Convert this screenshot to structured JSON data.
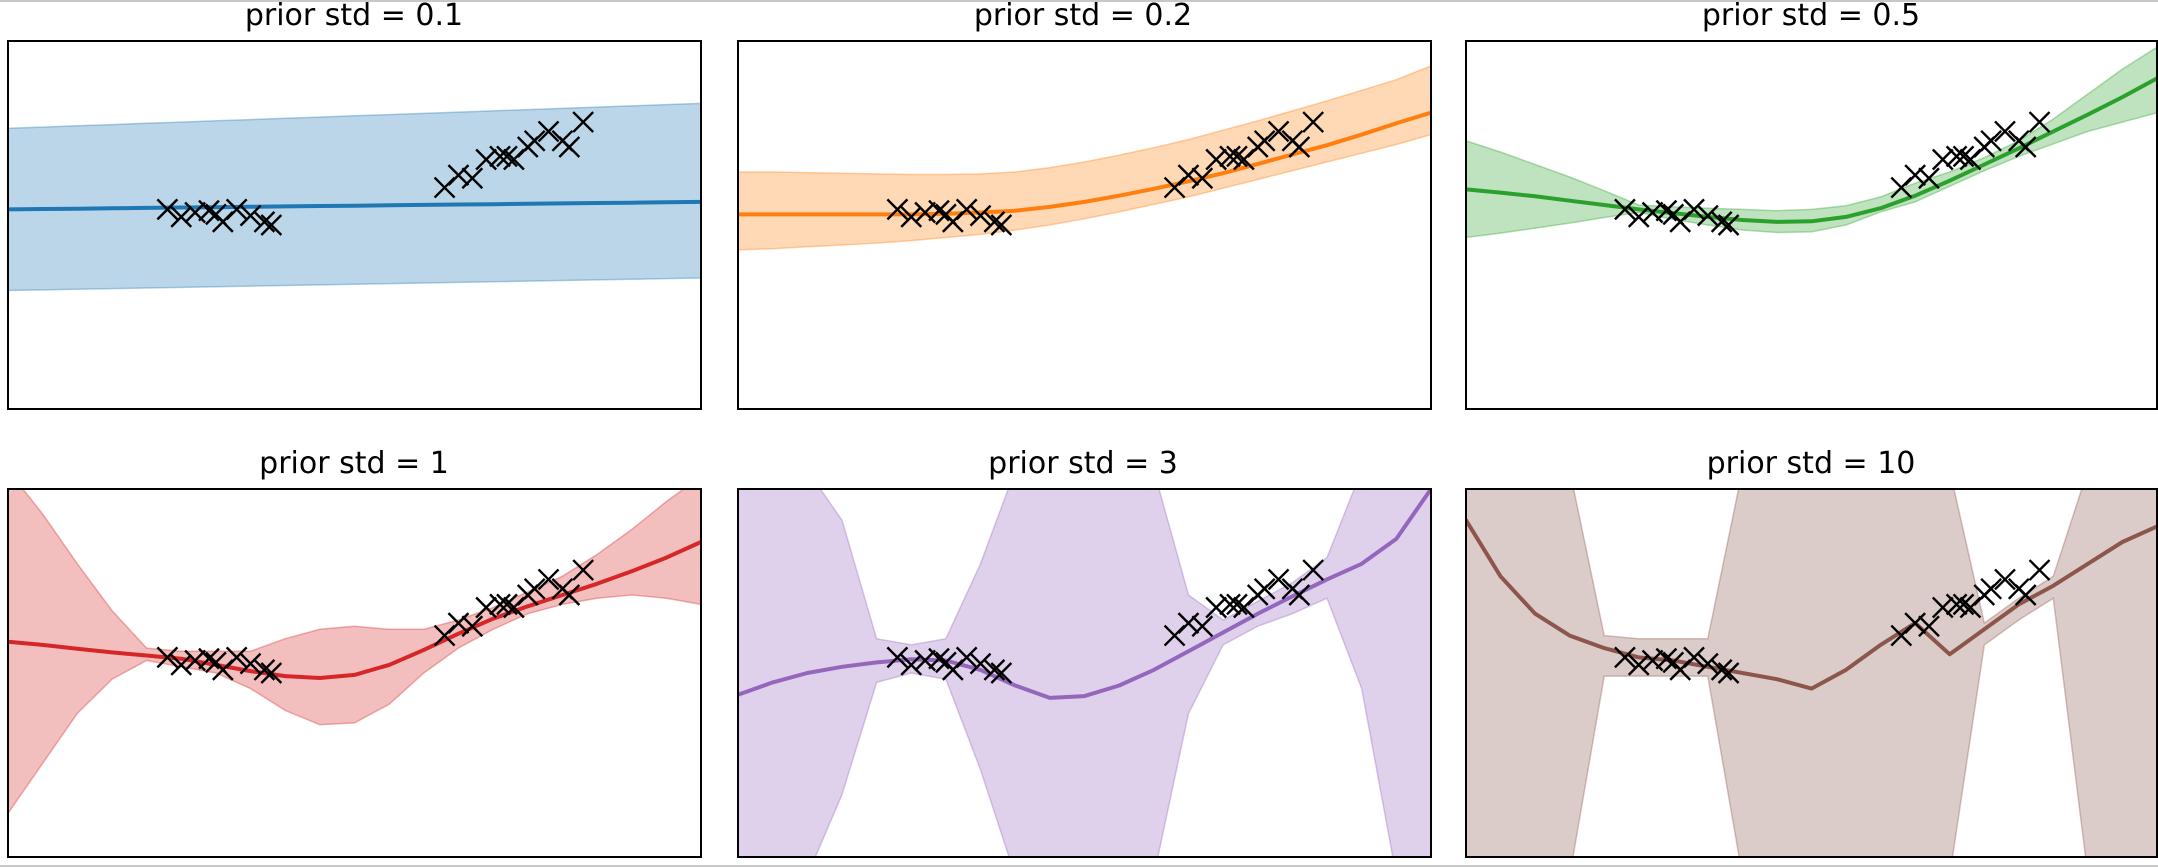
{
  "chart_data": [
    {
      "type": "line",
      "title": "prior std = 0.1",
      "color": "#1f77b4",
      "band_color": "#1f77b4",
      "ylim": [
        -3.2,
        2.7
      ],
      "xlim": [
        0,
        1
      ],
      "x": [
        0,
        0.05,
        0.1,
        0.15,
        0.2,
        0.25,
        0.3,
        0.35,
        0.4,
        0.45,
        0.5,
        0.55,
        0.6,
        0.65,
        0.7,
        0.75,
        0.8,
        0.85,
        0.9,
        0.95,
        1
      ],
      "mean": [
        0,
        0.006,
        0.012,
        0.018,
        0.024,
        0.03,
        0.036,
        0.042,
        0.048,
        0.054,
        0.06,
        0.066,
        0.072,
        0.078,
        0.084,
        0.09,
        0.096,
        0.102,
        0.108,
        0.114,
        0.12
      ],
      "lower": [
        -1.3,
        -1.29,
        -1.28,
        -1.27,
        -1.26,
        -1.25,
        -1.24,
        -1.23,
        -1.22,
        -1.21,
        -1.2,
        -1.19,
        -1.18,
        -1.17,
        -1.16,
        -1.15,
        -1.14,
        -1.13,
        -1.12,
        -1.11,
        -1.1
      ],
      "upper": [
        1.3,
        1.32,
        1.34,
        1.36,
        1.38,
        1.4,
        1.42,
        1.44,
        1.46,
        1.48,
        1.5,
        1.52,
        1.54,
        1.56,
        1.58,
        1.6,
        1.62,
        1.64,
        1.66,
        1.68,
        1.7
      ],
      "points": [
        {
          "x": 0.23,
          "y": 0.0
        },
        {
          "x": 0.25,
          "y": -0.12
        },
        {
          "x": 0.27,
          "y": -0.05
        },
        {
          "x": 0.29,
          "y": -0.02
        },
        {
          "x": 0.3,
          "y": -0.08
        },
        {
          "x": 0.31,
          "y": -0.2
        },
        {
          "x": 0.33,
          "y": 0.0
        },
        {
          "x": 0.35,
          "y": -0.1
        },
        {
          "x": 0.37,
          "y": -0.2
        },
        {
          "x": 0.38,
          "y": -0.25
        },
        {
          "x": 0.63,
          "y": 0.35
        },
        {
          "x": 0.65,
          "y": 0.55
        },
        {
          "x": 0.67,
          "y": 0.5
        },
        {
          "x": 0.69,
          "y": 0.8
        },
        {
          "x": 0.71,
          "y": 0.85
        },
        {
          "x": 0.72,
          "y": 0.85
        },
        {
          "x": 0.73,
          "y": 0.8
        },
        {
          "x": 0.75,
          "y": 1.0
        },
        {
          "x": 0.76,
          "y": 1.1
        },
        {
          "x": 0.78,
          "y": 1.25
        },
        {
          "x": 0.8,
          "y": 1.1
        },
        {
          "x": 0.81,
          "y": 1.0
        },
        {
          "x": 0.83,
          "y": 1.4
        }
      ]
    },
    {
      "type": "line",
      "title": "prior std = 0.2",
      "color": "#ff7f0e",
      "band_color": "#ff7f0e",
      "ylim": [
        -3.2,
        2.7
      ],
      "xlim": [
        0,
        1
      ],
      "x": [
        0,
        0.05,
        0.1,
        0.15,
        0.2,
        0.25,
        0.3,
        0.35,
        0.4,
        0.45,
        0.5,
        0.55,
        0.6,
        0.65,
        0.7,
        0.75,
        0.8,
        0.85,
        0.9,
        0.95,
        1
      ],
      "mean": [
        -0.08,
        -0.08,
        -0.08,
        -0.08,
        -0.08,
        -0.08,
        -0.07,
        -0.05,
        -0.02,
        0.04,
        0.12,
        0.22,
        0.33,
        0.45,
        0.58,
        0.73,
        0.88,
        1.03,
        1.2,
        1.38,
        1.55
      ],
      "lower": [
        -0.65,
        -0.63,
        -0.6,
        -0.57,
        -0.54,
        -0.5,
        -0.45,
        -0.4,
        -0.33,
        -0.25,
        -0.15,
        -0.04,
        0.08,
        0.2,
        0.34,
        0.48,
        0.62,
        0.76,
        0.9,
        1.04,
        1.2
      ],
      "upper": [
        0.6,
        0.6,
        0.59,
        0.58,
        0.57,
        0.56,
        0.56,
        0.57,
        0.6,
        0.67,
        0.76,
        0.87,
        0.99,
        1.12,
        1.27,
        1.42,
        1.58,
        1.74,
        1.91,
        2.08,
        2.3
      ],
      "points": [
        {
          "x": 0.23,
          "y": 0.0
        },
        {
          "x": 0.25,
          "y": -0.12
        },
        {
          "x": 0.27,
          "y": -0.05
        },
        {
          "x": 0.29,
          "y": -0.02
        },
        {
          "x": 0.3,
          "y": -0.08
        },
        {
          "x": 0.31,
          "y": -0.2
        },
        {
          "x": 0.33,
          "y": 0.0
        },
        {
          "x": 0.35,
          "y": -0.1
        },
        {
          "x": 0.37,
          "y": -0.2
        },
        {
          "x": 0.38,
          "y": -0.25
        },
        {
          "x": 0.63,
          "y": 0.35
        },
        {
          "x": 0.65,
          "y": 0.55
        },
        {
          "x": 0.67,
          "y": 0.5
        },
        {
          "x": 0.69,
          "y": 0.8
        },
        {
          "x": 0.71,
          "y": 0.85
        },
        {
          "x": 0.72,
          "y": 0.85
        },
        {
          "x": 0.73,
          "y": 0.8
        },
        {
          "x": 0.75,
          "y": 1.0
        },
        {
          "x": 0.76,
          "y": 1.1
        },
        {
          "x": 0.78,
          "y": 1.25
        },
        {
          "x": 0.8,
          "y": 1.1
        },
        {
          "x": 0.81,
          "y": 1.0
        },
        {
          "x": 0.83,
          "y": 1.4
        }
      ]
    },
    {
      "type": "line",
      "title": "prior std = 0.5",
      "color": "#2ca02c",
      "band_color": "#2ca02c",
      "ylim": [
        -3.2,
        2.7
      ],
      "xlim": [
        0,
        1
      ],
      "x": [
        0,
        0.05,
        0.1,
        0.15,
        0.2,
        0.25,
        0.3,
        0.35,
        0.4,
        0.45,
        0.5,
        0.55,
        0.6,
        0.65,
        0.7,
        0.75,
        0.8,
        0.85,
        0.9,
        0.95,
        1
      ],
      "mean": [
        0.32,
        0.27,
        0.21,
        0.14,
        0.07,
        0.0,
        -0.06,
        -0.12,
        -0.17,
        -0.2,
        -0.19,
        -0.12,
        0.02,
        0.22,
        0.46,
        0.72,
        0.98,
        1.25,
        1.52,
        1.8,
        2.1
      ],
      "lower": [
        -0.45,
        -0.38,
        -0.3,
        -0.22,
        -0.13,
        -0.05,
        -0.16,
        -0.25,
        -0.33,
        -0.37,
        -0.36,
        -0.25,
        -0.04,
        0.12,
        0.37,
        0.62,
        0.85,
        1.05,
        1.25,
        1.4,
        1.55
      ],
      "upper": [
        1.1,
        0.92,
        0.72,
        0.52,
        0.3,
        0.07,
        0.04,
        0.02,
        0.0,
        -0.02,
        0.0,
        0.06,
        0.2,
        0.42,
        0.6,
        0.83,
        1.1,
        1.45,
        1.85,
        2.25,
        2.6
      ],
      "points": [
        {
          "x": 0.23,
          "y": 0.0
        },
        {
          "x": 0.25,
          "y": -0.12
        },
        {
          "x": 0.27,
          "y": -0.05
        },
        {
          "x": 0.29,
          "y": -0.02
        },
        {
          "x": 0.3,
          "y": -0.08
        },
        {
          "x": 0.31,
          "y": -0.2
        },
        {
          "x": 0.33,
          "y": 0.0
        },
        {
          "x": 0.35,
          "y": -0.1
        },
        {
          "x": 0.37,
          "y": -0.2
        },
        {
          "x": 0.38,
          "y": -0.25
        },
        {
          "x": 0.63,
          "y": 0.35
        },
        {
          "x": 0.65,
          "y": 0.55
        },
        {
          "x": 0.67,
          "y": 0.5
        },
        {
          "x": 0.69,
          "y": 0.8
        },
        {
          "x": 0.71,
          "y": 0.85
        },
        {
          "x": 0.72,
          "y": 0.85
        },
        {
          "x": 0.73,
          "y": 0.8
        },
        {
          "x": 0.75,
          "y": 1.0
        },
        {
          "x": 0.76,
          "y": 1.1
        },
        {
          "x": 0.78,
          "y": 1.25
        },
        {
          "x": 0.8,
          "y": 1.1
        },
        {
          "x": 0.81,
          "y": 1.0
        },
        {
          "x": 0.83,
          "y": 1.4
        }
      ]
    },
    {
      "type": "line",
      "title": "prior std = 1",
      "color": "#d62728",
      "band_color": "#d62728",
      "ylim": [
        -3.2,
        2.7
      ],
      "xlim": [
        0,
        1
      ],
      "x": [
        0,
        0.05,
        0.1,
        0.15,
        0.2,
        0.25,
        0.3,
        0.35,
        0.4,
        0.45,
        0.5,
        0.55,
        0.6,
        0.65,
        0.7,
        0.75,
        0.8,
        0.85,
        0.9,
        0.95,
        1
      ],
      "mean": [
        0.25,
        0.2,
        0.14,
        0.08,
        0.03,
        -0.02,
        -0.12,
        -0.22,
        -0.3,
        -0.33,
        -0.28,
        -0.12,
        0.12,
        0.38,
        0.62,
        0.82,
        1.0,
        1.18,
        1.38,
        1.6,
        1.85
      ],
      "lower": [
        -2.5,
        -1.7,
        -0.9,
        -0.35,
        -0.05,
        -0.15,
        -0.25,
        -0.5,
        -0.85,
        -1.08,
        -1.05,
        -0.75,
        -0.25,
        0.15,
        0.45,
        0.7,
        0.85,
        0.95,
        1.0,
        0.95,
        0.85
      ],
      "upper": [
        3.0,
        2.3,
        1.5,
        0.75,
        0.15,
        0.1,
        0.1,
        0.1,
        0.3,
        0.45,
        0.5,
        0.45,
        0.45,
        0.6,
        0.8,
        1.05,
        1.3,
        1.65,
        2.05,
        2.5,
        2.9
      ],
      "points": [
        {
          "x": 0.23,
          "y": 0.0
        },
        {
          "x": 0.25,
          "y": -0.12
        },
        {
          "x": 0.27,
          "y": -0.05
        },
        {
          "x": 0.29,
          "y": -0.02
        },
        {
          "x": 0.3,
          "y": -0.08
        },
        {
          "x": 0.31,
          "y": -0.2
        },
        {
          "x": 0.33,
          "y": 0.0
        },
        {
          "x": 0.35,
          "y": -0.1
        },
        {
          "x": 0.37,
          "y": -0.2
        },
        {
          "x": 0.38,
          "y": -0.25
        },
        {
          "x": 0.63,
          "y": 0.35
        },
        {
          "x": 0.65,
          "y": 0.55
        },
        {
          "x": 0.67,
          "y": 0.5
        },
        {
          "x": 0.69,
          "y": 0.8
        },
        {
          "x": 0.71,
          "y": 0.85
        },
        {
          "x": 0.72,
          "y": 0.85
        },
        {
          "x": 0.73,
          "y": 0.8
        },
        {
          "x": 0.75,
          "y": 1.0
        },
        {
          "x": 0.76,
          "y": 1.1
        },
        {
          "x": 0.78,
          "y": 1.25
        },
        {
          "x": 0.8,
          "y": 1.1
        },
        {
          "x": 0.81,
          "y": 1.0
        },
        {
          "x": 0.83,
          "y": 1.4
        }
      ]
    },
    {
      "type": "line",
      "title": "prior std = 3",
      "color": "#9467bd",
      "band_color": "#9467bd",
      "ylim": [
        -3.2,
        2.7
      ],
      "xlim": [
        0,
        1
      ],
      "x": [
        0,
        0.05,
        0.1,
        0.15,
        0.2,
        0.25,
        0.3,
        0.35,
        0.4,
        0.45,
        0.5,
        0.55,
        0.6,
        0.65,
        0.7,
        0.75,
        0.8,
        0.85,
        0.9,
        0.95,
        1
      ],
      "mean": [
        -0.6,
        -0.4,
        -0.25,
        -0.15,
        -0.08,
        -0.03,
        -0.05,
        -0.2,
        -0.45,
        -0.65,
        -0.62,
        -0.45,
        -0.2,
        0.1,
        0.4,
        0.7,
        0.98,
        1.25,
        1.5,
        1.9,
        2.7
      ],
      "lower": [
        -3.5,
        -3.5,
        -3.5,
        -2.2,
        -0.4,
        -0.25,
        -0.35,
        -1.8,
        -3.5,
        -3.5,
        -3.5,
        -3.5,
        -3.5,
        -0.9,
        0.2,
        0.5,
        0.7,
        0.95,
        -0.5,
        -3.5,
        -3.5
      ],
      "upper": [
        3.0,
        3.0,
        3.0,
        2.2,
        0.3,
        0.2,
        0.3,
        1.5,
        3.0,
        3.0,
        3.0,
        3.0,
        3.0,
        1.0,
        0.6,
        0.9,
        1.2,
        1.6,
        3.0,
        3.0,
        3.0
      ],
      "points": [
        {
          "x": 0.23,
          "y": 0.0
        },
        {
          "x": 0.25,
          "y": -0.12
        },
        {
          "x": 0.27,
          "y": -0.05
        },
        {
          "x": 0.29,
          "y": -0.02
        },
        {
          "x": 0.3,
          "y": -0.08
        },
        {
          "x": 0.31,
          "y": -0.2
        },
        {
          "x": 0.33,
          "y": 0.0
        },
        {
          "x": 0.35,
          "y": -0.1
        },
        {
          "x": 0.37,
          "y": -0.2
        },
        {
          "x": 0.38,
          "y": -0.25
        },
        {
          "x": 0.63,
          "y": 0.35
        },
        {
          "x": 0.65,
          "y": 0.55
        },
        {
          "x": 0.67,
          "y": 0.5
        },
        {
          "x": 0.69,
          "y": 0.8
        },
        {
          "x": 0.71,
          "y": 0.85
        },
        {
          "x": 0.72,
          "y": 0.85
        },
        {
          "x": 0.73,
          "y": 0.8
        },
        {
          "x": 0.75,
          "y": 1.0
        },
        {
          "x": 0.76,
          "y": 1.1
        },
        {
          "x": 0.78,
          "y": 1.25
        },
        {
          "x": 0.8,
          "y": 1.1
        },
        {
          "x": 0.81,
          "y": 1.0
        },
        {
          "x": 0.83,
          "y": 1.4
        }
      ]
    },
    {
      "type": "line",
      "title": "prior std = 10",
      "color": "#8c564b",
      "band_color": "#8c564b",
      "ylim": [
        -3.2,
        2.7
      ],
      "xlim": [
        0,
        1
      ],
      "x": [
        0,
        0.05,
        0.1,
        0.15,
        0.2,
        0.25,
        0.3,
        0.35,
        0.4,
        0.45,
        0.5,
        0.55,
        0.6,
        0.65,
        0.7,
        0.75,
        0.8,
        0.85,
        0.9,
        0.95,
        1
      ],
      "mean": [
        2.2,
        1.3,
        0.7,
        0.35,
        0.15,
        0.0,
        -0.05,
        -0.15,
        -0.25,
        -0.35,
        -0.5,
        -0.2,
        0.2,
        0.55,
        0.05,
        0.45,
        0.85,
        1.15,
        1.5,
        1.85,
        2.1
      ],
      "lower": [
        -3.5,
        -3.5,
        -3.5,
        -3.5,
        -0.3,
        -0.3,
        -0.3,
        -0.3,
        -3.5,
        -3.5,
        -3.5,
        -3.5,
        -3.5,
        -3.5,
        -3.5,
        0.2,
        0.6,
        0.95,
        -3.5,
        -3.5,
        -3.5
      ],
      "upper": [
        3.0,
        3.0,
        3.0,
        3.0,
        0.35,
        0.3,
        0.3,
        0.3,
        3.0,
        3.0,
        3.0,
        3.0,
        3.0,
        3.0,
        3.0,
        0.55,
        0.95,
        1.3,
        3.0,
        3.0,
        3.0
      ],
      "points": [
        {
          "x": 0.23,
          "y": 0.0
        },
        {
          "x": 0.25,
          "y": -0.12
        },
        {
          "x": 0.27,
          "y": -0.05
        },
        {
          "x": 0.29,
          "y": -0.02
        },
        {
          "x": 0.3,
          "y": -0.08
        },
        {
          "x": 0.31,
          "y": -0.2
        },
        {
          "x": 0.33,
          "y": 0.0
        },
        {
          "x": 0.35,
          "y": -0.1
        },
        {
          "x": 0.37,
          "y": -0.2
        },
        {
          "x": 0.38,
          "y": -0.25
        },
        {
          "x": 0.63,
          "y": 0.35
        },
        {
          "x": 0.65,
          "y": 0.55
        },
        {
          "x": 0.67,
          "y": 0.5
        },
        {
          "x": 0.69,
          "y": 0.8
        },
        {
          "x": 0.71,
          "y": 0.85
        },
        {
          "x": 0.72,
          "y": 0.85
        },
        {
          "x": 0.73,
          "y": 0.8
        },
        {
          "x": 0.75,
          "y": 1.0
        },
        {
          "x": 0.76,
          "y": 1.1
        },
        {
          "x": 0.78,
          "y": 1.25
        },
        {
          "x": 0.8,
          "y": 1.1
        },
        {
          "x": 0.81,
          "y": 1.0
        },
        {
          "x": 0.83,
          "y": 1.4
        }
      ]
    }
  ]
}
